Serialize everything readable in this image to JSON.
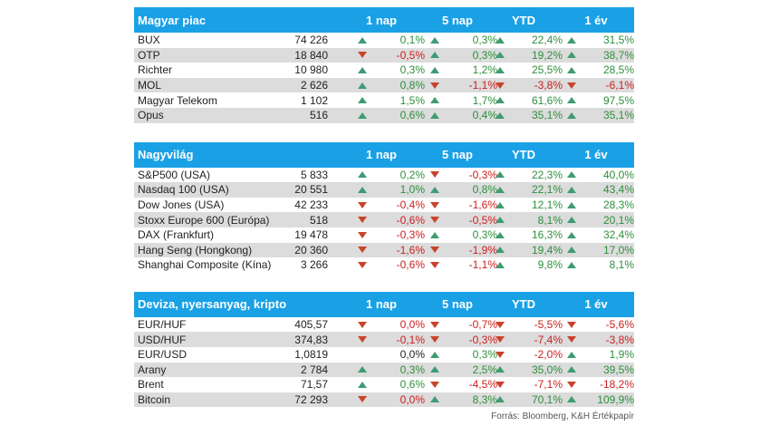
{
  "columns": [
    "1 nap",
    "5 nap",
    "YTD",
    "1 év"
  ],
  "sections": [
    {
      "title": "Magyar piac",
      "rows": [
        {
          "name": "BUX",
          "value": "74 226",
          "d1": "0,1%",
          "d5": "0,3%",
          "ytd": "22,4%",
          "y1": "31,5%",
          "t": [
            "up",
            "up",
            "up",
            "up"
          ],
          "c": [
            "pos",
            "pos",
            "pos",
            "pos"
          ]
        },
        {
          "name": "OTP",
          "value": "18 840",
          "d1": "-0,5%",
          "d5": "0,3%",
          "ytd": "19,2%",
          "y1": "38,7%",
          "t": [
            "dn",
            "up",
            "up",
            "up"
          ],
          "c": [
            "neg",
            "pos",
            "pos",
            "pos"
          ]
        },
        {
          "name": "Richter",
          "value": "10 980",
          "d1": "0,3%",
          "d5": "1,2%",
          "ytd": "25,5%",
          "y1": "28,5%",
          "t": [
            "up",
            "up",
            "up",
            "up"
          ],
          "c": [
            "pos",
            "pos",
            "pos",
            "pos"
          ]
        },
        {
          "name": "MOL",
          "value": "2 626",
          "d1": "0,8%",
          "d5": "-1,1%",
          "ytd": "-3,8%",
          "y1": "-6,1%",
          "t": [
            "up",
            "dn",
            "dn",
            "dn"
          ],
          "c": [
            "pos",
            "neg",
            "neg",
            "neg"
          ]
        },
        {
          "name": "Magyar Telekom",
          "value": "1 102",
          "d1": "1,5%",
          "d5": "1,7%",
          "ytd": "61,6%",
          "y1": "97,5%",
          "t": [
            "up",
            "up",
            "up",
            "up"
          ],
          "c": [
            "pos",
            "pos",
            "pos",
            "pos"
          ]
        },
        {
          "name": "Opus",
          "value": "516",
          "d1": "0,6%",
          "d5": "0,4%",
          "ytd": "35,1%",
          "y1": "35,1%",
          "t": [
            "up",
            "up",
            "up",
            "up"
          ],
          "c": [
            "pos",
            "pos",
            "pos",
            "pos"
          ]
        }
      ]
    },
    {
      "title": "Nagyvilág",
      "rows": [
        {
          "name": "S&P500 (USA)",
          "value": "5 833",
          "d1": "0,2%",
          "d5": "-0,3%",
          "ytd": "22,3%",
          "y1": "40,0%",
          "t": [
            "up",
            "dn",
            "up",
            "up"
          ],
          "c": [
            "pos",
            "neg",
            "pos",
            "pos"
          ]
        },
        {
          "name": "Nasdaq 100 (USA)",
          "value": "20 551",
          "d1": "1,0%",
          "d5": "0,8%",
          "ytd": "22,1%",
          "y1": "43,4%",
          "t": [
            "up",
            "up",
            "up",
            "up"
          ],
          "c": [
            "pos",
            "pos",
            "pos",
            "pos"
          ]
        },
        {
          "name": "Dow Jones (USA)",
          "value": "42 233",
          "d1": "-0,4%",
          "d5": "-1,6%",
          "ytd": "12,1%",
          "y1": "28,3%",
          "t": [
            "dn",
            "dn",
            "up",
            "up"
          ],
          "c": [
            "neg",
            "neg",
            "pos",
            "pos"
          ]
        },
        {
          "name": "Stoxx Europe 600 (Európa)",
          "value": "518",
          "d1": "-0,6%",
          "d5": "-0,5%",
          "ytd": "8,1%",
          "y1": "20,1%",
          "t": [
            "dn",
            "dn",
            "up",
            "up"
          ],
          "c": [
            "neg",
            "neg",
            "pos",
            "pos"
          ]
        },
        {
          "name": "DAX (Frankfurt)",
          "value": "19 478",
          "d1": "-0,3%",
          "d5": "0,3%",
          "ytd": "16,3%",
          "y1": "32,4%",
          "t": [
            "dn",
            "up",
            "up",
            "up"
          ],
          "c": [
            "neg",
            "pos",
            "pos",
            "pos"
          ]
        },
        {
          "name": "Hang Seng (Hongkong)",
          "value": "20 360",
          "d1": "-1,6%",
          "d5": "-1,9%",
          "ytd": "19,4%",
          "y1": "17,0%",
          "t": [
            "dn",
            "dn",
            "up",
            "up"
          ],
          "c": [
            "neg",
            "neg",
            "pos",
            "pos"
          ]
        },
        {
          "name": "Shanghai Composite (Kína)",
          "value": "3 266",
          "d1": "-0,6%",
          "d5": "-1,1%",
          "ytd": "9,8%",
          "y1": "8,1%",
          "t": [
            "dn",
            "dn",
            "up",
            "up"
          ],
          "c": [
            "neg",
            "neg",
            "pos",
            "pos"
          ]
        }
      ]
    },
    {
      "title": "Deviza, nyersanyag, kripto",
      "rows": [
        {
          "name": "EUR/HUF",
          "value": "405,57",
          "d1": "0,0%",
          "d5": "-0,7%",
          "ytd": "-5,5%",
          "y1": "-5,6%",
          "t": [
            "dn",
            "dn",
            "dn",
            "dn"
          ],
          "c": [
            "neg",
            "neg",
            "neg",
            "neg"
          ]
        },
        {
          "name": "USD/HUF",
          "value": "374,83",
          "d1": "-0,1%",
          "d5": "-0,3%",
          "ytd": "-7,4%",
          "y1": "-3,8%",
          "t": [
            "dn",
            "dn",
            "dn",
            "dn"
          ],
          "c": [
            "neg",
            "neg",
            "neg",
            "neg"
          ]
        },
        {
          "name": "EUR/USD",
          "value": "1,0819",
          "d1": "0,0%",
          "d5": "0,3%",
          "ytd": "-2,0%",
          "y1": "1,9%",
          "t": [
            "none",
            "up",
            "dn",
            "up"
          ],
          "c": [
            "neu",
            "pos",
            "neg",
            "pos"
          ]
        },
        {
          "name": "Arany",
          "value": "2 784",
          "d1": "0,3%",
          "d5": "2,5%",
          "ytd": "35,0%",
          "y1": "39,5%",
          "t": [
            "up",
            "up",
            "up",
            "up"
          ],
          "c": [
            "pos",
            "pos",
            "pos",
            "pos"
          ]
        },
        {
          "name": "Brent",
          "value": "71,57",
          "d1": "0,6%",
          "d5": "-4,5%",
          "ytd": "-7,1%",
          "y1": "-18,2%",
          "t": [
            "up",
            "dn",
            "dn",
            "dn"
          ],
          "c": [
            "pos",
            "neg",
            "neg",
            "neg"
          ]
        },
        {
          "name": "Bitcoin",
          "value": "72 293",
          "d1": "0,0%",
          "d5": "8,3%",
          "ytd": "70,1%",
          "y1": "109,9%",
          "t": [
            "dn",
            "up",
            "up",
            "up"
          ],
          "c": [
            "neg",
            "pos",
            "pos",
            "pos"
          ]
        }
      ]
    }
  ],
  "source": "Forrás: Bloomberg, K&H Értékpapír",
  "colors": {
    "header_bg": "#1aa1e5",
    "up": "#3f9b73",
    "down": "#c9432a",
    "alt_row": "#dcdcdc"
  }
}
